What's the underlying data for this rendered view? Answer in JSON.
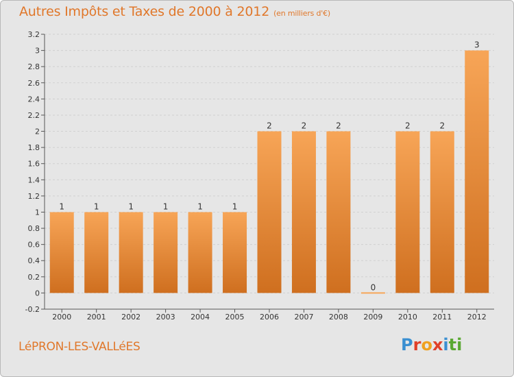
{
  "header": {
    "title": "Autres Impôts et Taxes de 2000 à 2012",
    "unit": "(en milliers d'€)"
  },
  "footer": {
    "commune": "LéPRON-LES-VALLéES",
    "logo_letters": [
      {
        "ch": "P",
        "color": "#3a8fd1"
      },
      {
        "ch": "r",
        "color": "#e0402a"
      },
      {
        "ch": "o",
        "color": "#f0a020"
      },
      {
        "ch": "x",
        "color": "#e0402a"
      },
      {
        "ch": "i",
        "color": "#3a8fd1"
      },
      {
        "ch": "t",
        "color": "#59a832"
      },
      {
        "ch": "i",
        "color": "#59a832"
      }
    ]
  },
  "chart_data": {
    "type": "bar",
    "categories": [
      "2000",
      "2001",
      "2002",
      "2003",
      "2004",
      "2005",
      "2006",
      "2007",
      "2008",
      "2009",
      "2010",
      "2011",
      "2012"
    ],
    "values": [
      1,
      1,
      1,
      1,
      1,
      1,
      2,
      2,
      2,
      0,
      2,
      2,
      3
    ],
    "data_labels": [
      "1",
      "1",
      "1",
      "1",
      "1",
      "1",
      "2",
      "2",
      "2",
      "0",
      "2",
      "2",
      "3"
    ],
    "ylim": [
      -0.2,
      3.2
    ],
    "yticks": [
      "-0.2",
      "0",
      "0.2",
      "0.4",
      "0.6",
      "0.8",
      "1",
      "1.2",
      "1.4",
      "1.6",
      "1.8",
      "2",
      "2.2",
      "2.4",
      "2.6",
      "2.8",
      "3",
      "3.2"
    ],
    "grid": true,
    "bar_color_top": "#f7a557",
    "bar_color_bottom": "#cf6f1f"
  }
}
